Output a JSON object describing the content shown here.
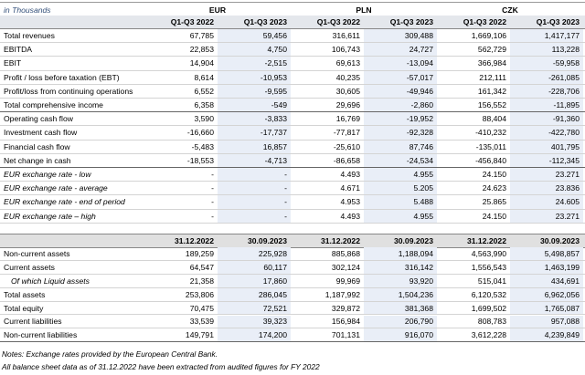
{
  "header": {
    "unit": "in Thousands",
    "currencies": [
      "EUR",
      "PLN",
      "CZK"
    ],
    "periods": [
      "Q1-Q3 2022",
      "Q1-Q3 2023"
    ]
  },
  "income_table": {
    "rows": [
      {
        "label": "Total revenues",
        "values": [
          "67,785",
          "59,456",
          "316,611",
          "309,488",
          "1,669,106",
          "1,417,177"
        ]
      },
      {
        "label": "EBITDA",
        "values": [
          "22,853",
          "4,750",
          "106,743",
          "24,727",
          "562,729",
          "113,228"
        ]
      },
      {
        "label": "EBIT",
        "values": [
          "14,904",
          "-2,515",
          "69,613",
          "-13,094",
          "366,984",
          "-59,958"
        ]
      },
      {
        "label": "Profit / loss before taxation (EBT)",
        "values": [
          "8,614",
          "-10,953",
          "40,235",
          "-57,017",
          "212,111",
          "-261,085"
        ]
      },
      {
        "label": "Profit/loss from continuing operations",
        "values": [
          "6,552",
          "-9,595",
          "30,605",
          "-49,946",
          "161,342",
          "-228,706"
        ]
      },
      {
        "label": "Total comprehensive income",
        "values": [
          "6,358",
          "-549",
          "29,696",
          "-2,860",
          "156,552",
          "-11,895"
        ]
      },
      {
        "label": "Operating cash flow",
        "values": [
          "3,590",
          "-3,833",
          "16,769",
          "-19,952",
          "88,404",
          "-91,360"
        ]
      },
      {
        "label": "Investment cash flow",
        "values": [
          "-16,660",
          "-17,737",
          "-77,817",
          "-92,328",
          "-410,232",
          "-422,780"
        ]
      },
      {
        "label": "Financial cash flow",
        "values": [
          "-5,483",
          "16,857",
          "-25,610",
          "87,746",
          "-135,011",
          "401,795"
        ]
      },
      {
        "label": "Net change in cash",
        "values": [
          "-18,553",
          "-4,713",
          "-86,658",
          "-24,534",
          "-456,840",
          "-112,345"
        ]
      },
      {
        "label": "EUR exchange rate - low",
        "values": [
          "-",
          "-",
          "4.493",
          "4.955",
          "24.150",
          "23.271"
        ]
      },
      {
        "label": "EUR exchange rate - average",
        "values": [
          "-",
          "-",
          "4.671",
          "5.205",
          "24.623",
          "23.836"
        ]
      },
      {
        "label": "EUR exchange rate - end of period",
        "values": [
          "-",
          "-",
          "4.953",
          "5.488",
          "25.865",
          "24.605"
        ]
      },
      {
        "label": "EUR exchange rate – high",
        "values": [
          "-",
          "-",
          "4.493",
          "4.955",
          "24.150",
          "23.271"
        ]
      }
    ]
  },
  "balance_table": {
    "dates": [
      "31.12.2022",
      "30.09.2023"
    ],
    "rows": [
      {
        "label": "Non-current assets",
        "values": [
          "189,259",
          "225,928",
          "885,868",
          "1,188,094",
          "4,563,990",
          "5,498,857"
        ]
      },
      {
        "label": "Current assets",
        "values": [
          "64,547",
          "60,117",
          "302,124",
          "316,142",
          "1,556,543",
          "1,463,199"
        ]
      },
      {
        "label": "Of which Liquid assets",
        "values": [
          "21,358",
          "17,860",
          "99,969",
          "93,920",
          "515,041",
          "434,691"
        ]
      },
      {
        "label": "Total assets",
        "values": [
          "253,806",
          "286,045",
          "1,187,992",
          "1,504,236",
          "6,120,532",
          "6,962,056"
        ]
      },
      {
        "label": "Total equity",
        "values": [
          "70,475",
          "72,521",
          "329,872",
          "381,368",
          "1,699,502",
          "1,765,087"
        ]
      },
      {
        "label": "Current liabilities",
        "values": [
          "33,539",
          "39,323",
          "156,984",
          "206,790",
          "808,783",
          "957,088"
        ]
      },
      {
        "label": "Non-current liabilities",
        "values": [
          "149,791",
          "174,200",
          "701,131",
          "916,070",
          "3,612,228",
          "4,239,849"
        ]
      }
    ]
  },
  "notes": [
    "Notes: Exchange rates provided by the European Central Bank.",
    "All balance sheet data as of 31.12.2022 have been extracted from audited figures for FY 2022"
  ]
}
